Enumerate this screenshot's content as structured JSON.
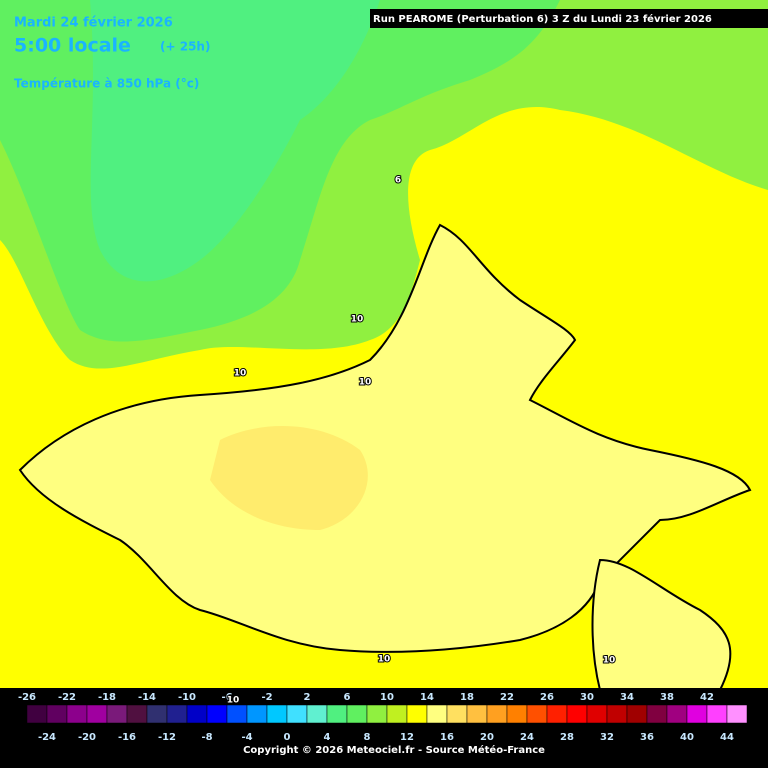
{
  "run": "Run PEAROME (Perturbation 6) 3 Z du Lundi 23 février 2026",
  "header": {
    "date": "Mardi 24 février 2026",
    "time": "5:00 locale",
    "lead": "(+ 25h)",
    "field": "Température à 850 hPa (°c)"
  },
  "contour_labels": [
    6,
    10,
    10,
    10,
    10,
    10,
    10
  ],
  "scale": {
    "values": [
      -26,
      -24,
      -22,
      -20,
      -18,
      -16,
      -14,
      -12,
      -10,
      -8,
      -6,
      -4,
      -2,
      0,
      2,
      4,
      6,
      8,
      10,
      12,
      14,
      16,
      18,
      20,
      22,
      24,
      26,
      28,
      30,
      32,
      34,
      36,
      38,
      40,
      42,
      44
    ],
    "colors": [
      "#400040",
      "#600060",
      "#8c008c",
      "#a000a0",
      "#7a1a7a",
      "#501040",
      "#303070",
      "#202090",
      "#0000c8",
      "#0000ff",
      "#0050ff",
      "#0096ff",
      "#00c8ff",
      "#40e0ff",
      "#60f0d0",
      "#50f080",
      "#60f060",
      "#90f040",
      "#c0f020",
      "#ffff00",
      "#ffff80",
      "#ffe060",
      "#ffc040",
      "#ffa020",
      "#ff8000",
      "#ff5000",
      "#ff2000",
      "#ff0000",
      "#e00000",
      "#c00000",
      "#a00000",
      "#800040",
      "#a00080",
      "#e000e0",
      "#ff40ff",
      "#ff90ff"
    ]
  },
  "copyright": "Copyright © 2026 Meteociel.fr - Source Météo-France"
}
